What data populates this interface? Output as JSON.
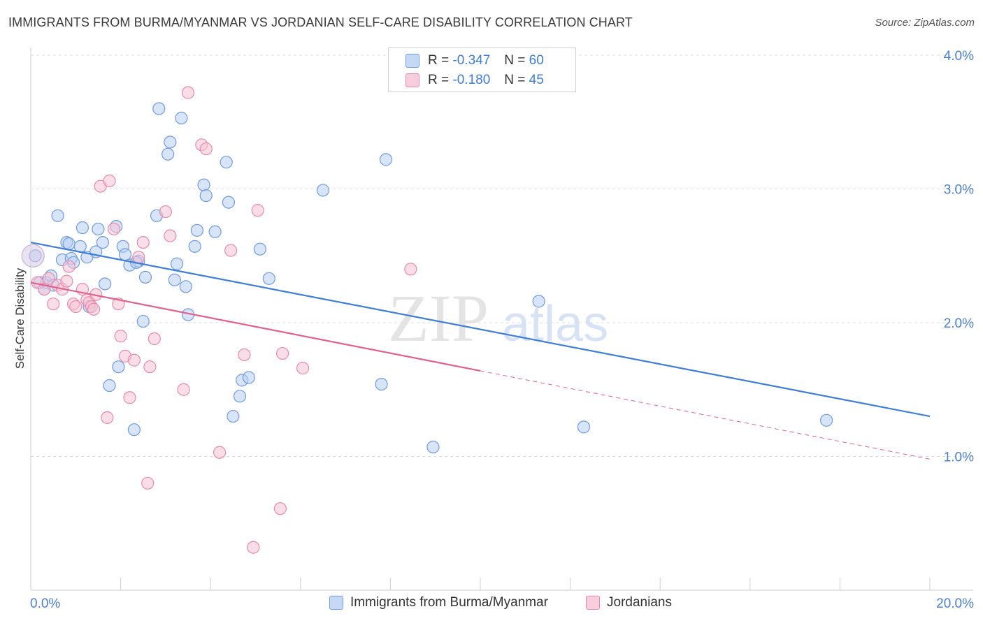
{
  "title": "IMMIGRANTS FROM BURMA/MYANMAR VS JORDANIAN SELF-CARE DISABILITY CORRELATION CHART",
  "source": "Source: ZipAtlas.com",
  "legend": {
    "r_label": "R =",
    "n_label": "N =",
    "series1": {
      "r": "-0.347",
      "n": "60"
    },
    "series2": {
      "r": "-0.180",
      "n": "45"
    }
  },
  "watermark": {
    "zip": "ZIP",
    "atlas": "atlas"
  },
  "colors": {
    "blue": "#3f7dd6",
    "blue_fill": "#b8d0f3",
    "pink": "#e0608e",
    "pink_fill": "#f6c3d3"
  },
  "chart_data": {
    "type": "scatter",
    "title": "IMMIGRANTS FROM BURMA/MYANMAR VS JORDANIAN SELF-CARE DISABILITY CORRELATION CHART",
    "xlabel": "",
    "ylabel": "Self-Care Disability",
    "xlim": [
      0,
      20
    ],
    "ylim": [
      0,
      4.0
    ],
    "x_tick_labels": [
      "0.0%",
      "20.0%"
    ],
    "y_ticks": [
      1.0,
      2.0,
      3.0,
      4.0
    ],
    "y_tick_labels": [
      "1.0%",
      "2.0%",
      "3.0%",
      "4.0%"
    ],
    "series": [
      {
        "name": "Immigrants from Burma/Myanmar",
        "color": "#3f7dd6",
        "trend": {
          "x0": 0,
          "y0": 2.6,
          "x1": 20,
          "y1": 1.3
        },
        "points": [
          [
            0.1,
            2.5
          ],
          [
            0.2,
            2.3
          ],
          [
            0.3,
            2.25
          ],
          [
            0.35,
            2.3
          ],
          [
            0.45,
            2.35
          ],
          [
            0.5,
            2.28
          ],
          [
            0.6,
            2.8
          ],
          [
            0.7,
            2.47
          ],
          [
            0.8,
            2.6
          ],
          [
            0.85,
            2.59
          ],
          [
            0.9,
            2.48
          ],
          [
            1.1,
            2.57
          ],
          [
            1.15,
            2.71
          ],
          [
            1.25,
            2.49
          ],
          [
            1.45,
            2.53
          ],
          [
            1.5,
            2.7
          ],
          [
            1.6,
            2.6
          ],
          [
            1.65,
            2.29
          ],
          [
            1.75,
            1.53
          ],
          [
            1.9,
            2.72
          ],
          [
            1.95,
            1.67
          ],
          [
            2.05,
            2.57
          ],
          [
            2.1,
            2.51
          ],
          [
            2.2,
            2.43
          ],
          [
            2.3,
            1.2
          ],
          [
            2.4,
            2.46
          ],
          [
            2.5,
            2.01
          ],
          [
            2.55,
            2.34
          ],
          [
            2.8,
            2.8
          ],
          [
            2.85,
            3.6
          ],
          [
            3.05,
            3.26
          ],
          [
            3.1,
            3.35
          ],
          [
            3.2,
            2.32
          ],
          [
            3.25,
            2.44
          ],
          [
            3.35,
            3.53
          ],
          [
            3.45,
            2.27
          ],
          [
            3.5,
            2.06
          ],
          [
            3.65,
            2.57
          ],
          [
            3.7,
            2.69
          ],
          [
            3.85,
            3.03
          ],
          [
            3.9,
            2.95
          ],
          [
            4.1,
            2.68
          ],
          [
            4.35,
            3.2
          ],
          [
            4.4,
            2.9
          ],
          [
            4.5,
            1.3
          ],
          [
            4.65,
            1.45
          ],
          [
            4.7,
            1.57
          ],
          [
            4.85,
            1.59
          ],
          [
            5.1,
            2.55
          ],
          [
            5.3,
            2.33
          ],
          [
            6.5,
            2.99
          ],
          [
            7.8,
            1.54
          ],
          [
            7.9,
            3.22
          ],
          [
            8.95,
            1.07
          ],
          [
            11.3,
            2.16
          ],
          [
            12.3,
            1.22
          ],
          [
            17.7,
            1.27
          ],
          [
            1.3,
            2.12
          ],
          [
            0.95,
            2.45
          ],
          [
            2.35,
            2.45
          ]
        ]
      },
      {
        "name": "Jordanians",
        "color": "#e0608e",
        "trend": {
          "x0": 0,
          "y0": 2.3,
          "x1": 10,
          "y1": 1.64
        },
        "trend_dashed": {
          "x0": 10,
          "y0": 1.64,
          "x1": 20,
          "y1": 0.98
        },
        "points": [
          [
            0.15,
            2.3
          ],
          [
            0.3,
            2.25
          ],
          [
            0.4,
            2.33
          ],
          [
            0.5,
            2.14
          ],
          [
            0.6,
            2.28
          ],
          [
            0.7,
            2.25
          ],
          [
            0.8,
            2.31
          ],
          [
            0.85,
            2.42
          ],
          [
            0.95,
            2.14
          ],
          [
            1.0,
            2.12
          ],
          [
            1.15,
            2.25
          ],
          [
            1.25,
            2.17
          ],
          [
            1.3,
            2.15
          ],
          [
            1.35,
            2.12
          ],
          [
            1.45,
            2.21
          ],
          [
            1.55,
            3.02
          ],
          [
            1.7,
            1.29
          ],
          [
            1.75,
            3.06
          ],
          [
            1.85,
            2.7
          ],
          [
            1.95,
            2.14
          ],
          [
            2.0,
            1.9
          ],
          [
            2.1,
            1.75
          ],
          [
            2.2,
            1.44
          ],
          [
            2.3,
            1.72
          ],
          [
            2.4,
            2.49
          ],
          [
            2.5,
            2.6
          ],
          [
            2.6,
            0.8
          ],
          [
            2.65,
            1.67
          ],
          [
            2.75,
            1.88
          ],
          [
            3.0,
            2.83
          ],
          [
            3.1,
            2.65
          ],
          [
            3.4,
            1.5
          ],
          [
            3.5,
            3.72
          ],
          [
            3.8,
            3.33
          ],
          [
            3.9,
            3.3
          ],
          [
            4.2,
            1.03
          ],
          [
            4.45,
            2.54
          ],
          [
            4.75,
            1.76
          ],
          [
            4.95,
            0.32
          ],
          [
            5.05,
            2.84
          ],
          [
            5.55,
            0.61
          ],
          [
            5.6,
            1.77
          ],
          [
            6.05,
            1.66
          ],
          [
            8.45,
            2.4
          ],
          [
            1.4,
            2.1
          ]
        ]
      }
    ]
  },
  "bottom_legend": [
    "Immigrants from Burma/Myanmar",
    "Jordanians"
  ]
}
